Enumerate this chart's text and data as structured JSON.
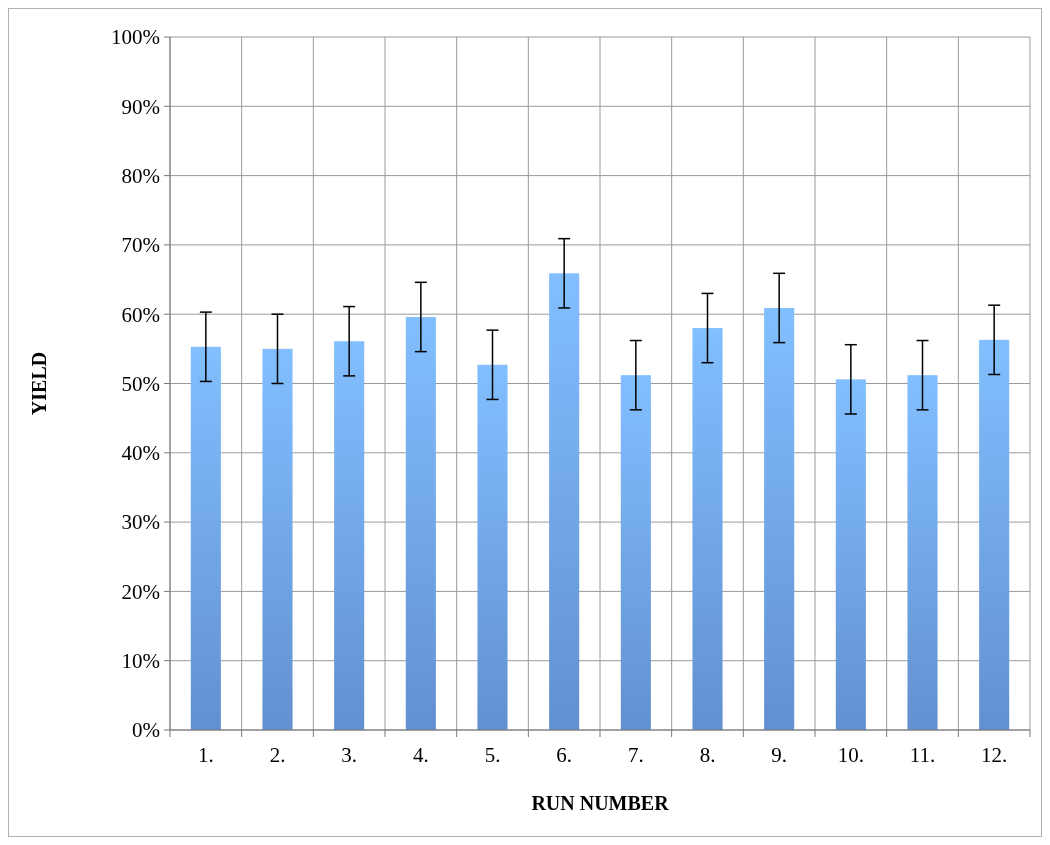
{
  "chart_data": {
    "type": "bar",
    "xlabel": "RUN NUMBER",
    "ylabel": "YIELD",
    "categories": [
      "1.",
      "2.",
      "3.",
      "4.",
      "5.",
      "6.",
      "7.",
      "8.",
      "9.",
      "10.",
      "11.",
      "12."
    ],
    "values": [
      55.3,
      55.0,
      56.1,
      59.6,
      52.7,
      65.9,
      51.2,
      58.0,
      60.9,
      50.6,
      51.2,
      56.3
    ],
    "errors": [
      5,
      5,
      5,
      5,
      5,
      5,
      5,
      5,
      5,
      5,
      5,
      5
    ],
    "color": "#6fa3ec",
    "ylim": [
      0,
      100
    ],
    "yticks": [
      {
        "value": 0,
        "label": "0%"
      },
      {
        "value": 10,
        "label": "10%"
      },
      {
        "value": 20,
        "label": "20%"
      },
      {
        "value": 30,
        "label": "30%"
      },
      {
        "value": 40,
        "label": "40%"
      },
      {
        "value": 50,
        "label": "50%"
      },
      {
        "value": 60,
        "label": "60%"
      },
      {
        "value": 70,
        "label": "70%"
      },
      {
        "value": 80,
        "label": "80%"
      },
      {
        "value": 90,
        "label": "90%"
      },
      {
        "value": 100,
        "label": "100%"
      }
    ],
    "grid": true
  }
}
